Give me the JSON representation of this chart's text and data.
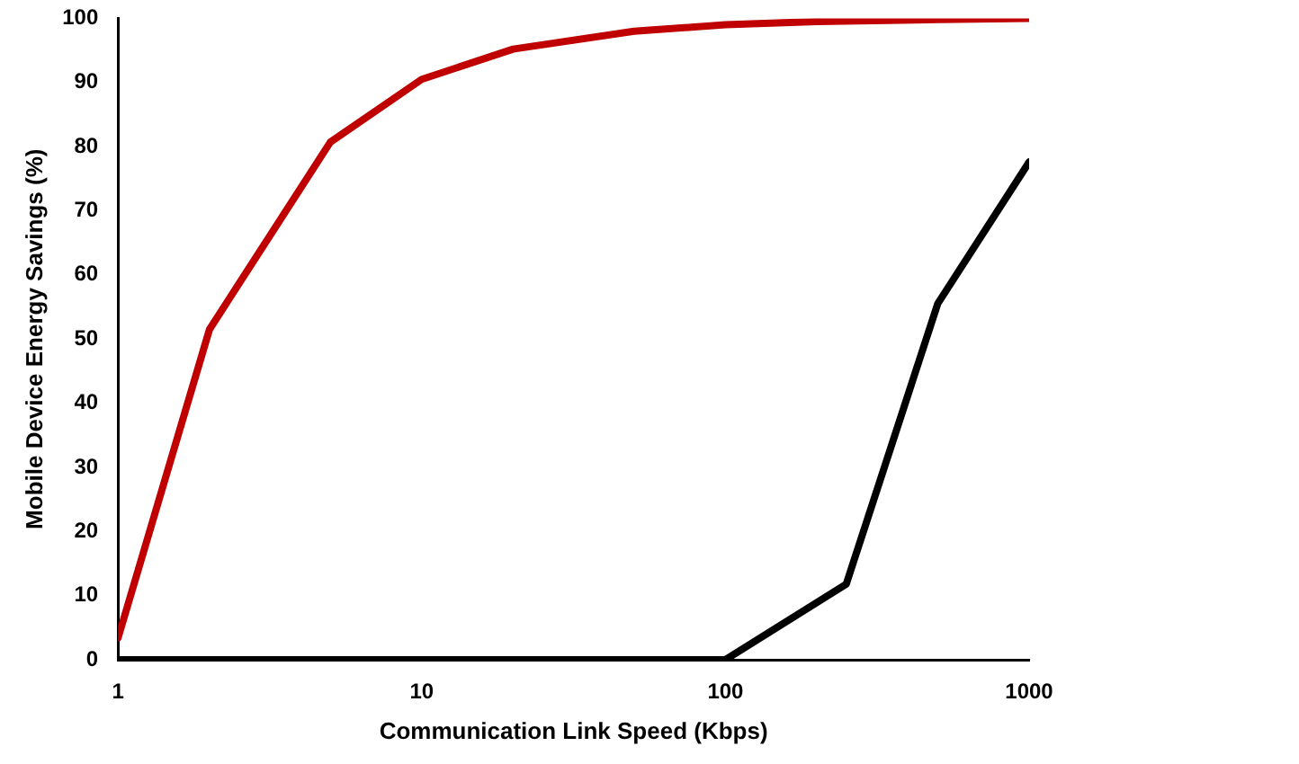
{
  "chart_data": {
    "type": "line",
    "xlabel": "Communication Link Speed (Kbps)",
    "ylabel": "Mobile Device Energy Savings (%)",
    "log": "x",
    "xlim": [
      1,
      1000
    ],
    "xticks": [
      1,
      10,
      100,
      1000
    ],
    "ylim": [
      0,
      100
    ],
    "yticks": [
      0,
      10,
      20,
      30,
      40,
      50,
      60,
      70,
      80,
      90,
      100
    ],
    "grid": false,
    "marker": "none",
    "line_style": "solid",
    "series": [
      {
        "color": "#c00000",
        "x": [
          1,
          2,
          5,
          10,
          20,
          50,
          100,
          200,
          500,
          1000
        ],
        "values": [
          3.4,
          51.5,
          80.7,
          90.5,
          95.2,
          98,
          99,
          99.5,
          99.8,
          100
        ]
      },
      {
        "color": "#000000",
        "x": [
          1,
          2,
          5,
          10,
          20,
          50,
          100,
          250,
          500,
          1000
        ],
        "values": [
          0,
          0,
          0,
          0,
          0,
          0,
          0,
          11.8,
          55.5,
          77.6
        ]
      }
    ]
  }
}
